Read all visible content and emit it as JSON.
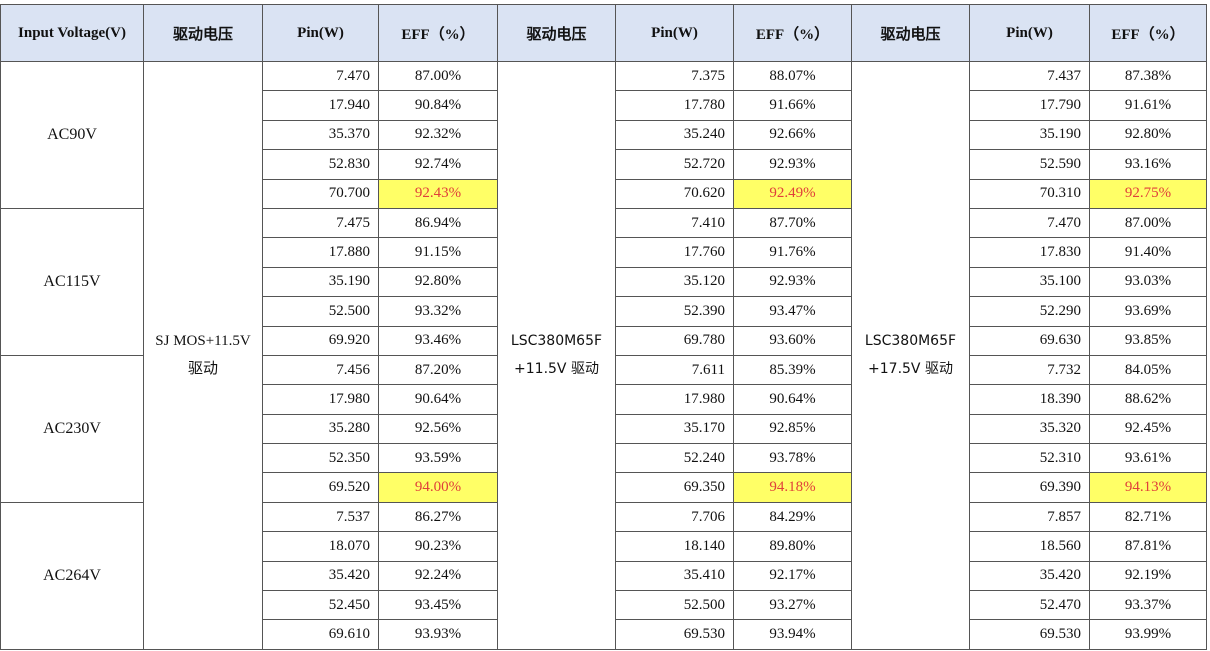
{
  "table": {
    "header": [
      "Input Voltage(V)",
      "驱动电压",
      "Pin(W)",
      "EFF（%）",
      "驱动电压",
      "Pin(W)",
      "EFF（%）",
      "驱动电压",
      "Pin(W)",
      "EFF（%）"
    ],
    "voltages": [
      "AC90V",
      "AC115V",
      "AC230V",
      "AC264V"
    ],
    "drives": [
      [
        "SJ MOS+11.5V",
        "驱动"
      ],
      [
        "LSC380M65F",
        "+11.5V 驱动"
      ],
      [
        "LSC380M65F",
        "+17.5V 驱动"
      ]
    ],
    "rows": [
      [
        "7.470",
        "87.00%",
        "7.375",
        "88.07%",
        "7.437",
        "87.38%"
      ],
      [
        "17.940",
        "90.84%",
        "17.780",
        "91.66%",
        "17.790",
        "91.61%"
      ],
      [
        "35.370",
        "92.32%",
        "35.240",
        "92.66%",
        "35.190",
        "92.80%"
      ],
      [
        "52.830",
        "92.74%",
        "52.720",
        "92.93%",
        "52.590",
        "93.16%"
      ],
      [
        "70.700",
        "92.43%",
        "70.620",
        "92.49%",
        "70.310",
        "92.75%"
      ],
      [
        "7.475",
        "86.94%",
        "7.410",
        "87.70%",
        "7.470",
        "87.00%"
      ],
      [
        "17.880",
        "91.15%",
        "17.760",
        "91.76%",
        "17.830",
        "91.40%"
      ],
      [
        "35.190",
        "92.80%",
        "35.120",
        "92.93%",
        "35.100",
        "93.03%"
      ],
      [
        "52.500",
        "93.32%",
        "52.390",
        "93.47%",
        "52.290",
        "93.69%"
      ],
      [
        "69.920",
        "93.46%",
        "69.780",
        "93.60%",
        "69.630",
        "93.85%"
      ],
      [
        "7.456",
        "87.20%",
        "7.611",
        "85.39%",
        "7.732",
        "84.05%"
      ],
      [
        "17.980",
        "90.64%",
        "17.980",
        "90.64%",
        "18.390",
        "88.62%"
      ],
      [
        "35.280",
        "92.56%",
        "35.170",
        "92.85%",
        "35.320",
        "92.45%"
      ],
      [
        "52.350",
        "93.59%",
        "52.240",
        "93.78%",
        "52.310",
        "93.61%"
      ],
      [
        "69.520",
        "94.00%",
        "69.350",
        "94.18%",
        "69.390",
        "94.13%"
      ],
      [
        "7.537",
        "86.27%",
        "7.706",
        "84.29%",
        "7.857",
        "82.71%"
      ],
      [
        "18.070",
        "90.23%",
        "18.140",
        "89.80%",
        "18.560",
        "87.81%"
      ],
      [
        "35.420",
        "92.24%",
        "35.410",
        "92.17%",
        "35.420",
        "92.19%"
      ],
      [
        "52.450",
        "93.45%",
        "52.500",
        "93.27%",
        "52.470",
        "93.37%"
      ],
      [
        "69.610",
        "93.93%",
        "69.530",
        "93.94%",
        "69.530",
        "93.99%"
      ]
    ],
    "highlight": {
      "rows": [
        4,
        14
      ],
      "color": "#ffff66",
      "text_color": "#e0403a"
    }
  }
}
